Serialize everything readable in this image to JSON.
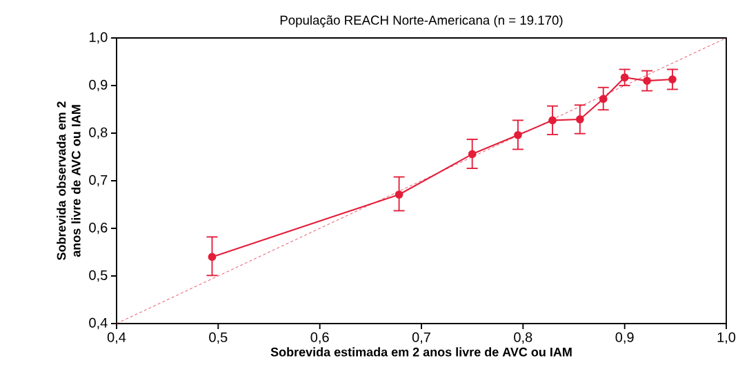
{
  "chart_data": {
    "type": "line",
    "title": "População REACH Norte-Americana (n = 19.170)",
    "xlabel": "Sobrevida estimada em 2 anos livre de AVC ou IAM",
    "ylabel": "Sobrevida observada em 2 anos livre de AVC ou IAM",
    "xlim": [
      0.4,
      1.0
    ],
    "ylim": [
      0.4,
      1.0
    ],
    "xticks": [
      {
        "value": 0.4,
        "label": "0,4"
      },
      {
        "value": 0.5,
        "label": "0,5"
      },
      {
        "value": 0.6,
        "label": "0,6"
      },
      {
        "value": 0.7,
        "label": "0,7"
      },
      {
        "value": 0.8,
        "label": "0,8"
      },
      {
        "value": 0.9,
        "label": "0,9"
      },
      {
        "value": 1.0,
        "label": "1,0"
      }
    ],
    "yticks": [
      {
        "value": 0.4,
        "label": "0,4"
      },
      {
        "value": 0.5,
        "label": "0,5"
      },
      {
        "value": 0.6,
        "label": "0,6"
      },
      {
        "value": 0.7,
        "label": "0,7"
      },
      {
        "value": 0.8,
        "label": "0,8"
      },
      {
        "value": 0.9,
        "label": "0,9"
      },
      {
        "value": 1.0,
        "label": "1,0"
      }
    ],
    "grid": false,
    "series": [
      {
        "color": "#e31e3a",
        "marker": "circle",
        "line_style": "solid",
        "x": [
          0.494,
          0.678,
          0.75,
          0.795,
          0.829,
          0.856,
          0.879,
          0.9,
          0.922,
          0.947
        ],
        "values": [
          0.54,
          0.671,
          0.756,
          0.796,
          0.827,
          0.829,
          0.872,
          0.917,
          0.91,
          0.913
        ],
        "errors": [
          [
            0.501,
            0.582
          ],
          [
            0.637,
            0.708
          ],
          [
            0.726,
            0.787
          ],
          [
            0.766,
            0.827
          ],
          [
            0.797,
            0.857
          ],
          [
            0.799,
            0.859
          ],
          [
            0.849,
            0.896
          ],
          [
            0.9,
            0.934
          ],
          [
            0.889,
            0.931
          ],
          [
            0.892,
            0.934
          ]
        ]
      },
      {
        "type": "line",
        "color": "#e31e3a",
        "marker": "none",
        "line_style": "dashed",
        "x": [
          0.4,
          1.0
        ],
        "values": [
          0.4,
          1.0
        ]
      }
    ]
  }
}
